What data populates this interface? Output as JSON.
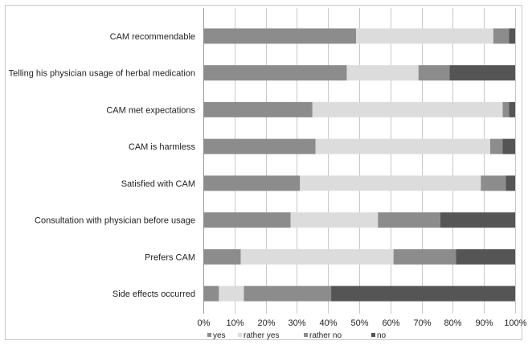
{
  "chart_data": {
    "type": "bar",
    "orientation": "horizontal",
    "stacked": true,
    "normalized_percent": true,
    "categories": [
      "CAM recommendable",
      "Telling his physician usage of herbal medication",
      "CAM met expectations",
      "CAM is harmless",
      "Satisfied with CAM",
      "Consultation with physician before usage",
      "Prefers CAM",
      "Side effects occurred"
    ],
    "series": [
      {
        "name": "yes",
        "color": "#8c8c8c",
        "values": [
          49,
          46,
          35,
          36,
          31,
          28,
          12,
          5
        ]
      },
      {
        "name": "rather yes",
        "color": "#dcdcdc",
        "values": [
          44,
          23,
          61,
          56,
          58,
          28,
          49,
          8
        ]
      },
      {
        "name": "rather no",
        "color": "#8c8c8c",
        "values": [
          5,
          10,
          2,
          4,
          8,
          20,
          20,
          28
        ]
      },
      {
        "name": "no",
        "color": "#555555",
        "values": [
          2,
          21,
          2,
          4,
          3,
          24,
          19,
          59
        ]
      }
    ],
    "xlim": [
      0,
      100
    ],
    "x_ticks": [
      "0%",
      "10%",
      "20%",
      "30%",
      "40%",
      "50%",
      "60%",
      "70%",
      "80%",
      "90%",
      "100%"
    ],
    "title": "",
    "xlabel": "",
    "ylabel": "",
    "grid": "vertical",
    "legend_position": "bottom"
  }
}
